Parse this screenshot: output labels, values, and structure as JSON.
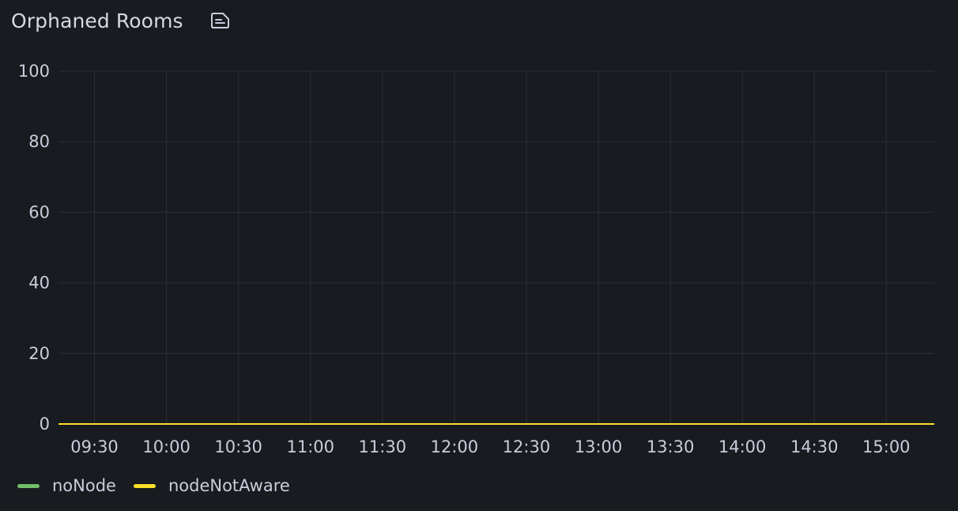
{
  "panel": {
    "title": "Orphaned Rooms",
    "description_icon": "description-icon"
  },
  "colors": {
    "background": "#181b1f",
    "grid": "#2c2f35",
    "text": "#ccccdc",
    "noNode": "#73bf69",
    "nodeNotAware": "#fade2a"
  },
  "chart_data": {
    "type": "line",
    "title": "Orphaned Rooms",
    "xlabel": "",
    "ylabel": "",
    "ylim": [
      0,
      100
    ],
    "y_ticks": [
      0,
      20,
      40,
      60,
      80,
      100
    ],
    "x_range": [
      "09:15",
      "15:20"
    ],
    "x_ticks": [
      "09:30",
      "10:00",
      "10:30",
      "11:00",
      "11:30",
      "12:00",
      "12:30",
      "13:00",
      "13:30",
      "14:00",
      "14:30",
      "15:00"
    ],
    "grid": true,
    "legend_position": "bottom-left",
    "series": [
      {
        "name": "noNode",
        "color": "#73bf69",
        "x": [
          "09:15",
          "15:20"
        ],
        "values": [
          0,
          0
        ]
      },
      {
        "name": "nodeNotAware",
        "color": "#fade2a",
        "x": [
          "09:15",
          "15:20"
        ],
        "values": [
          0,
          0
        ]
      }
    ]
  },
  "legend": [
    {
      "name": "noNode",
      "color": "#73bf69"
    },
    {
      "name": "nodeNotAware",
      "color": "#fade2a"
    }
  ]
}
